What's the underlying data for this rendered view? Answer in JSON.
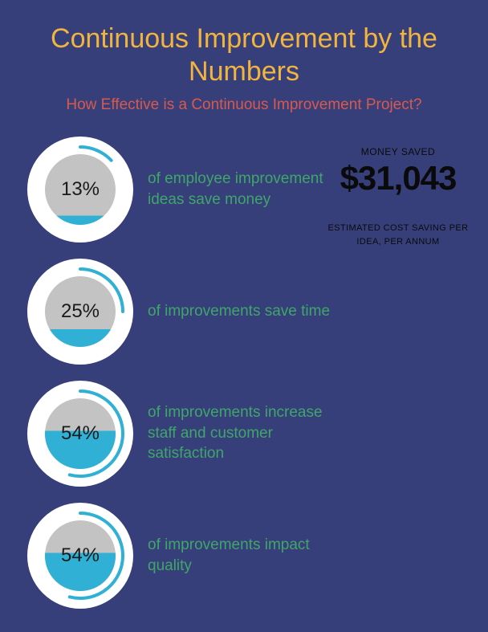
{
  "title": "Continuous Improvement by the Numbers",
  "subtitle": "How Effective is a Continuous Improvement Project?",
  "colors": {
    "background": "#373f7a",
    "title": "#f1b53f",
    "subtitle": "#d65a4f",
    "desc": "#3fa66a",
    "gauge_ring_bg": "#ffffff",
    "gauge_inner": "#c3c3c3",
    "gauge_fill": "#2fb0d4",
    "gauge_arc": "#2fb0d4",
    "pct_text": "#1a1a1a",
    "money_text": "#0a0a0a"
  },
  "gauge": {
    "outer_radius": 66,
    "inner_radius": 44,
    "arc_stroke_width": 4,
    "arc_radius": 53
  },
  "stats": [
    {
      "pct": 13,
      "pct_label": "13%",
      "desc": "of employee improvement ideas save money"
    },
    {
      "pct": 25,
      "pct_label": "25%",
      "desc": "of improvements save time"
    },
    {
      "pct": 54,
      "pct_label": "54%",
      "desc": "of improvements increase staff and customer satisfaction"
    },
    {
      "pct": 54,
      "pct_label": "54%",
      "desc": "of improvements impact quality"
    }
  ],
  "money": {
    "caption": "MONEY SAVED",
    "amount": "$31,043",
    "sub": "ESTIMATED COST SAVING PER IDEA, PER ANNUM"
  }
}
